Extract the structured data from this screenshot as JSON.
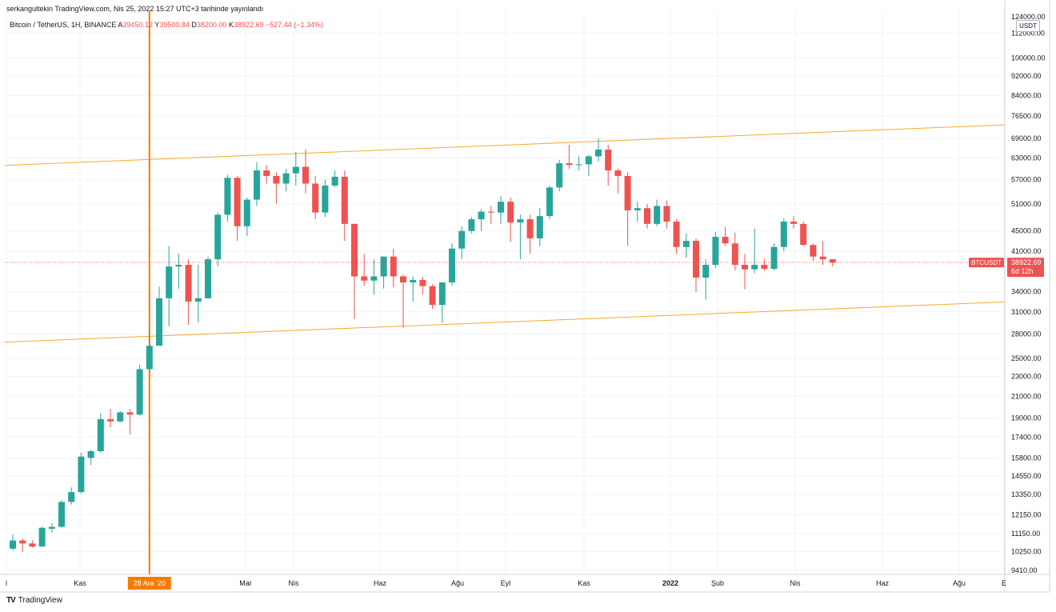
{
  "header": {
    "published": "serkangultekin TradingView.com, Nis 25, 2022 15:27 UTC+3 tarihinde yayınlandı",
    "symbol": "Bitcoin / TetherUS, 1H, BINANCE",
    "ohlc": [
      {
        "label": "A",
        "value": "39450.12"
      },
      {
        "label": "Y",
        "value": "39500.84"
      },
      {
        "label": "D",
        "value": "38200.00"
      },
      {
        "label": "K",
        "value": "38922.69"
      }
    ],
    "change": "−527.44 (−1.34%)"
  },
  "price_axis": {
    "unit": "USDT",
    "top_label": "124000.00",
    "ticks": [
      112000,
      100000,
      92000,
      84000,
      76500,
      69000,
      63000,
      57000,
      51000,
      45000,
      41000,
      34000,
      31000,
      28000,
      25000,
      23000,
      21000,
      19000,
      17400,
      15800,
      14550,
      13350,
      12150,
      11150,
      10250,
      9410
    ]
  },
  "last_price": {
    "symbol": "BTCUSDT",
    "price": "38922.69",
    "countdown": "6d 12h",
    "value": 38922.69
  },
  "time_axis": {
    "labels": [
      "l",
      "Kas",
      "Mar",
      "Nis",
      "Haz",
      "Ağu",
      "Eyl",
      "Kas",
      "2022",
      "Şub",
      "Nis",
      "Haz",
      "Ağu",
      "E"
    ],
    "bold_labels": [
      "2022"
    ],
    "marker": {
      "label": "28 Ara '20",
      "date": "2020-12-28"
    }
  },
  "chart_data": {
    "type": "candlestick",
    "scale": "log",
    "interval": "1W",
    "start_date": "2020-09-21",
    "ylim": [
      9000,
      125000
    ],
    "grid": true,
    "candles": [
      {
        "o": 10400,
        "h": 11100,
        "l": 10300,
        "c": 10800
      },
      {
        "o": 10800,
        "h": 10900,
        "l": 10250,
        "c": 10650
      },
      {
        "o": 10650,
        "h": 10800,
        "l": 10450,
        "c": 10500
      },
      {
        "o": 10500,
        "h": 11500,
        "l": 10500,
        "c": 11450
      },
      {
        "o": 11400,
        "h": 11700,
        "l": 11200,
        "c": 11500
      },
      {
        "o": 11500,
        "h": 13000,
        "l": 11450,
        "c": 12900
      },
      {
        "o": 12900,
        "h": 13800,
        "l": 12750,
        "c": 13500
      },
      {
        "o": 13500,
        "h": 16200,
        "l": 13400,
        "c": 15900
      },
      {
        "o": 15800,
        "h": 16400,
        "l": 15300,
        "c": 16300
      },
      {
        "o": 16300,
        "h": 19400,
        "l": 16200,
        "c": 18900
      },
      {
        "o": 18900,
        "h": 19800,
        "l": 18200,
        "c": 18700
      },
      {
        "o": 18700,
        "h": 19600,
        "l": 18600,
        "c": 19500
      },
      {
        "o": 19500,
        "h": 19800,
        "l": 17600,
        "c": 19300
      },
      {
        "o": 19300,
        "h": 24300,
        "l": 19200,
        "c": 23800
      },
      {
        "o": 23800,
        "h": 28400,
        "l": 23500,
        "c": 26500
      },
      {
        "o": 26500,
        "h": 34800,
        "l": 26500,
        "c": 33000
      },
      {
        "o": 33000,
        "h": 42000,
        "l": 29000,
        "c": 38200
      },
      {
        "o": 38200,
        "h": 40500,
        "l": 34500,
        "c": 38500
      },
      {
        "o": 38500,
        "h": 39500,
        "l": 29200,
        "c": 32500
      },
      {
        "o": 32500,
        "h": 38500,
        "l": 29500,
        "c": 33000
      },
      {
        "o": 33000,
        "h": 40000,
        "l": 33000,
        "c": 39500
      },
      {
        "o": 39500,
        "h": 49000,
        "l": 38200,
        "c": 48500
      },
      {
        "o": 48500,
        "h": 58300,
        "l": 47000,
        "c": 57500
      },
      {
        "o": 57500,
        "h": 58000,
        "l": 43000,
        "c": 46000
      },
      {
        "o": 46000,
        "h": 52500,
        "l": 44000,
        "c": 52000
      },
      {
        "o": 52000,
        "h": 61800,
        "l": 50500,
        "c": 59500
      },
      {
        "o": 59500,
        "h": 61000,
        "l": 56000,
        "c": 58000
      },
      {
        "o": 58000,
        "h": 59000,
        "l": 51000,
        "c": 56000
      },
      {
        "o": 56000,
        "h": 60000,
        "l": 54000,
        "c": 58700
      },
      {
        "o": 58700,
        "h": 64800,
        "l": 55500,
        "c": 60500
      },
      {
        "o": 60500,
        "h": 65500,
        "l": 53500,
        "c": 56000
      },
      {
        "o": 56000,
        "h": 58000,
        "l": 47500,
        "c": 49000
      },
      {
        "o": 49000,
        "h": 57000,
        "l": 48000,
        "c": 55500
      },
      {
        "o": 55500,
        "h": 59500,
        "l": 55000,
        "c": 57800
      },
      {
        "o": 57800,
        "h": 59500,
        "l": 43000,
        "c": 46500
      },
      {
        "o": 46500,
        "h": 46600,
        "l": 30000,
        "c": 36500
      },
      {
        "o": 36500,
        "h": 40500,
        "l": 35000,
        "c": 35800
      },
      {
        "o": 35800,
        "h": 39500,
        "l": 33500,
        "c": 36500
      },
      {
        "o": 36500,
        "h": 40000,
        "l": 34500,
        "c": 40000
      },
      {
        "o": 40000,
        "h": 41500,
        "l": 34700,
        "c": 36500
      },
      {
        "o": 36500,
        "h": 36800,
        "l": 28800,
        "c": 35500
      },
      {
        "o": 35500,
        "h": 36500,
        "l": 32500,
        "c": 35900
      },
      {
        "o": 35900,
        "h": 36400,
        "l": 33600,
        "c": 34900
      },
      {
        "o": 34900,
        "h": 35200,
        "l": 31400,
        "c": 32000
      },
      {
        "o": 32000,
        "h": 35500,
        "l": 29500,
        "c": 35500
      },
      {
        "o": 35500,
        "h": 42500,
        "l": 35000,
        "c": 41500
      },
      {
        "o": 41500,
        "h": 46000,
        "l": 39500,
        "c": 45000
      },
      {
        "o": 45000,
        "h": 48000,
        "l": 44500,
        "c": 47500
      },
      {
        "o": 47500,
        "h": 49800,
        "l": 45000,
        "c": 49200
      },
      {
        "o": 49200,
        "h": 50500,
        "l": 46500,
        "c": 49000
      },
      {
        "o": 49000,
        "h": 52800,
        "l": 46500,
        "c": 51500
      },
      {
        "o": 51500,
        "h": 52500,
        "l": 42800,
        "c": 46800
      },
      {
        "o": 46800,
        "h": 48500,
        "l": 39500,
        "c": 47500
      },
      {
        "o": 47500,
        "h": 48500,
        "l": 40500,
        "c": 43500
      },
      {
        "o": 43500,
        "h": 50000,
        "l": 42000,
        "c": 48200
      },
      {
        "o": 48200,
        "h": 55500,
        "l": 47500,
        "c": 55000
      },
      {
        "o": 55000,
        "h": 62500,
        "l": 54000,
        "c": 61500
      },
      {
        "o": 61500,
        "h": 67000,
        "l": 60000,
        "c": 61000
      },
      {
        "o": 61000,
        "h": 63500,
        "l": 59500,
        "c": 61200
      },
      {
        "o": 61200,
        "h": 64000,
        "l": 58000,
        "c": 63500
      },
      {
        "o": 63500,
        "h": 69000,
        "l": 62000,
        "c": 65500
      },
      {
        "o": 65500,
        "h": 67000,
        "l": 55500,
        "c": 59500
      },
      {
        "o": 59500,
        "h": 60000,
        "l": 53500,
        "c": 58000
      },
      {
        "o": 58000,
        "h": 59000,
        "l": 42000,
        "c": 49500
      },
      {
        "o": 49500,
        "h": 51500,
        "l": 47000,
        "c": 50000
      },
      {
        "o": 50000,
        "h": 51000,
        "l": 45500,
        "c": 46500
      },
      {
        "o": 46500,
        "h": 52000,
        "l": 46000,
        "c": 50500
      },
      {
        "o": 50500,
        "h": 51800,
        "l": 45500,
        "c": 47000
      },
      {
        "o": 47000,
        "h": 47500,
        "l": 40500,
        "c": 41800
      },
      {
        "o": 41800,
        "h": 44500,
        "l": 39800,
        "c": 43000
      },
      {
        "o": 43000,
        "h": 43500,
        "l": 34000,
        "c": 36300
      },
      {
        "o": 36300,
        "h": 39500,
        "l": 32800,
        "c": 38500
      },
      {
        "o": 38500,
        "h": 44800,
        "l": 38000,
        "c": 43800
      },
      {
        "o": 43800,
        "h": 45800,
        "l": 42000,
        "c": 42500
      },
      {
        "o": 42500,
        "h": 44700,
        "l": 37500,
        "c": 38500
      },
      {
        "o": 38500,
        "h": 40500,
        "l": 34400,
        "c": 37700
      },
      {
        "o": 37700,
        "h": 45500,
        "l": 37000,
        "c": 38500
      },
      {
        "o": 38500,
        "h": 39500,
        "l": 37500,
        "c": 37800
      },
      {
        "o": 37800,
        "h": 42500,
        "l": 37500,
        "c": 41800
      },
      {
        "o": 41800,
        "h": 47700,
        "l": 41000,
        "c": 47000
      },
      {
        "o": 47000,
        "h": 48200,
        "l": 45500,
        "c": 46500
      },
      {
        "o": 46500,
        "h": 47000,
        "l": 42000,
        "c": 42200
      },
      {
        "o": 42200,
        "h": 42500,
        "l": 39200,
        "c": 40000
      },
      {
        "o": 40000,
        "h": 43000,
        "l": 38500,
        "c": 39500
      },
      {
        "o": 39500,
        "h": 39500,
        "l": 38200,
        "c": 38900
      }
    ],
    "channel_lines": [
      {
        "name": "upper",
        "points": [
          {
            "date": "2020-09-21",
            "price": 61000
          },
          {
            "date": "2022-10-03",
            "price": 74000
          }
        ]
      },
      {
        "name": "lower",
        "points": [
          {
            "date": "2020-09-21",
            "price": 27000
          },
          {
            "date": "2022-10-03",
            "price": 32700
          }
        ]
      }
    ],
    "vertical_marker": {
      "date": "2020-12-28"
    }
  },
  "brand": {
    "logo": "TV",
    "name": "TradingView"
  },
  "colors": {
    "up": "#26a69a",
    "down": "#ef5350",
    "channel": "#f7a829",
    "marker": "#f57c00",
    "grid": "#f0f3fa",
    "last_line": "#ef5350"
  }
}
